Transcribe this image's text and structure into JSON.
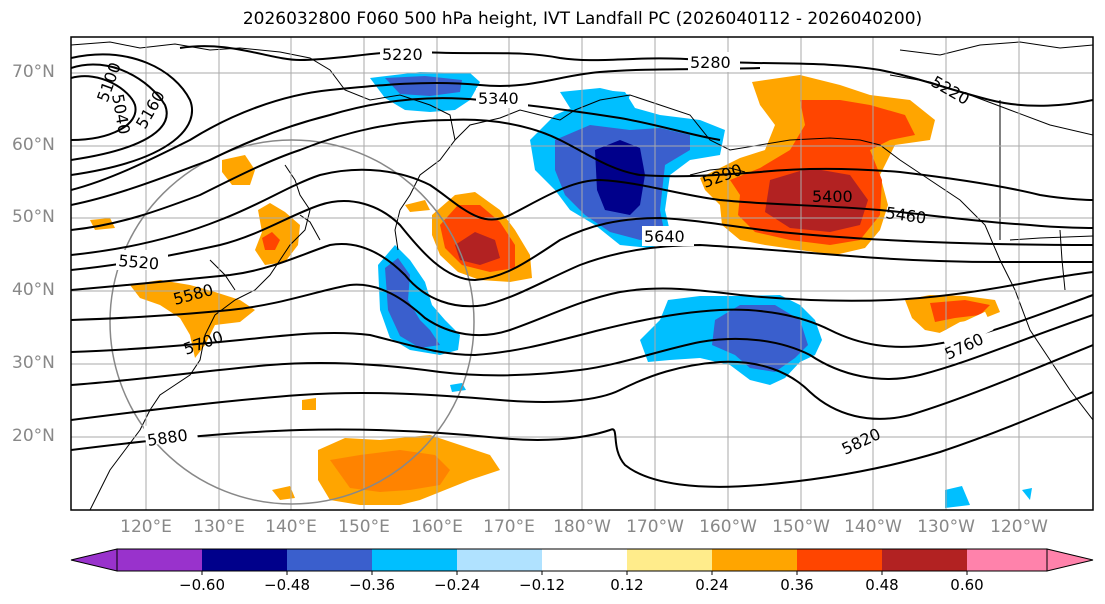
{
  "title": "2026032800 F060 500 hPa height, IVT Landfall PC (2026040112 - 2026040200)",
  "lat_labels": [
    "70°N",
    "60°N",
    "50°N",
    "40°N",
    "30°N",
    "20°N"
  ],
  "lon_labels": [
    "120°E",
    "130°E",
    "140°E",
    "150°E",
    "160°E",
    "170°E",
    "180°W",
    "170°W",
    "160°W",
    "150°W",
    "140°W",
    "130°W",
    "120°W"
  ],
  "contour_labels": [
    "5220",
    "5280",
    "5340",
    "5040",
    "5100",
    "5160",
    "5220",
    "5290",
    "5400",
    "5460",
    "5640",
    "5520",
    "5580",
    "5700",
    "5760",
    "5820",
    "5880"
  ],
  "colorbar": {
    "ticks": [
      "−0.60",
      "−0.48",
      "−0.36",
      "−0.24",
      "−0.12",
      "0.12",
      "0.24",
      "0.36",
      "0.48",
      "0.60"
    ],
    "colors": [
      "#9932CC",
      "#00008B",
      "#3A5FCD",
      "#00BFFF",
      "#B0E2FF",
      "#FFFFFF",
      "#FFEC8B",
      "#FFA500",
      "#FF4500",
      "#B22222",
      "#FF82AB"
    ]
  },
  "colors": {
    "dark_blue": "#00008B",
    "royal_blue": "#3A5FCD",
    "sky_blue": "#00BFFF",
    "light_blue": "#B0E2FF",
    "yellow": "#FFEC8B",
    "orange": "#FFA500",
    "red_orange": "#FF4500",
    "firebrick": "#B22222",
    "pink": "#FF82AB"
  }
}
